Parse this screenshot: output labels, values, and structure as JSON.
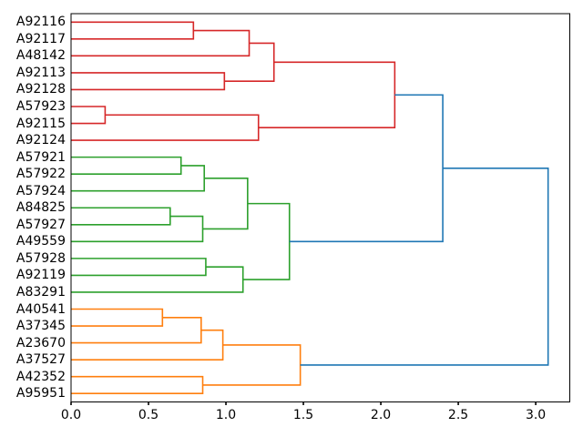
{
  "chart_data": {
    "type": "dendrogram",
    "orientation": "labels-left-root-right",
    "grid": false,
    "legend": null,
    "leaves": [
      "A92116",
      "A92117",
      "A48142",
      "A92113",
      "A92128",
      "A57923",
      "A92115",
      "A92124",
      "A57921",
      "A57922",
      "A57924",
      "A84825",
      "A57927",
      "A49559",
      "A57928",
      "A92119",
      "A83291",
      "A40541",
      "A37345",
      "A23670",
      "A37527",
      "A42352",
      "A95951"
    ],
    "merges": [
      {
        "id": "m0",
        "a": "L0",
        "b": "L1",
        "dist": 0.79,
        "color_key": "red"
      },
      {
        "id": "m1",
        "a": "m0",
        "b": "L2",
        "dist": 1.15,
        "color_key": "red"
      },
      {
        "id": "m2",
        "a": "L3",
        "b": "L4",
        "dist": 0.99,
        "color_key": "red"
      },
      {
        "id": "m3",
        "a": "m1",
        "b": "m2",
        "dist": 1.31,
        "color_key": "red"
      },
      {
        "id": "m4",
        "a": "L5",
        "b": "L6",
        "dist": 0.22,
        "color_key": "red"
      },
      {
        "id": "m5",
        "a": "m4",
        "b": "L7",
        "dist": 1.21,
        "color_key": "red"
      },
      {
        "id": "m6",
        "a": "m3",
        "b": "m5",
        "dist": 2.09,
        "color_key": "red"
      },
      {
        "id": "m7",
        "a": "L8",
        "b": "L9",
        "dist": 0.71,
        "color_key": "green"
      },
      {
        "id": "m8",
        "a": "m7",
        "b": "L10",
        "dist": 0.86,
        "color_key": "green"
      },
      {
        "id": "m9",
        "a": "L11",
        "b": "L12",
        "dist": 0.64,
        "color_key": "green"
      },
      {
        "id": "m10",
        "a": "m9",
        "b": "L13",
        "dist": 0.85,
        "color_key": "green"
      },
      {
        "id": "m11",
        "a": "m8",
        "b": "m10",
        "dist": 1.14,
        "color_key": "green"
      },
      {
        "id": "m12",
        "a": "L14",
        "b": "L15",
        "dist": 0.87,
        "color_key": "green"
      },
      {
        "id": "m13",
        "a": "m12",
        "b": "L16",
        "dist": 1.11,
        "color_key": "green"
      },
      {
        "id": "m14",
        "a": "m11",
        "b": "m13",
        "dist": 1.41,
        "color_key": "green"
      },
      {
        "id": "m15",
        "a": "L17",
        "b": "L18",
        "dist": 0.59,
        "color_key": "orange"
      },
      {
        "id": "m16",
        "a": "m15",
        "b": "L19",
        "dist": 0.84,
        "color_key": "orange"
      },
      {
        "id": "m17",
        "a": "m16",
        "b": "L20",
        "dist": 0.98,
        "color_key": "orange"
      },
      {
        "id": "m18",
        "a": "L21",
        "b": "L22",
        "dist": 0.85,
        "color_key": "orange"
      },
      {
        "id": "m19",
        "a": "m17",
        "b": "m18",
        "dist": 1.48,
        "color_key": "orange"
      },
      {
        "id": "m20",
        "a": "m6",
        "b": "m14",
        "dist": 2.4,
        "color_key": "blue"
      },
      {
        "id": "m21",
        "a": "m20",
        "b": "m19",
        "dist": 3.08,
        "color_key": "blue"
      }
    ],
    "colors": {
      "red": "#d62728",
      "green": "#2ca02c",
      "orange": "#ff7f0e",
      "blue": "#1f77b4",
      "axis": "#000000"
    },
    "x_ticks": [
      0.0,
      0.5,
      1.0,
      1.5,
      2.0,
      2.5,
      3.0
    ],
    "x_tick_labels": [
      "0.0",
      "0.5",
      "1.0",
      "1.5",
      "2.0",
      "2.5",
      "3.0"
    ],
    "xlim": [
      0,
      3.22
    ]
  }
}
